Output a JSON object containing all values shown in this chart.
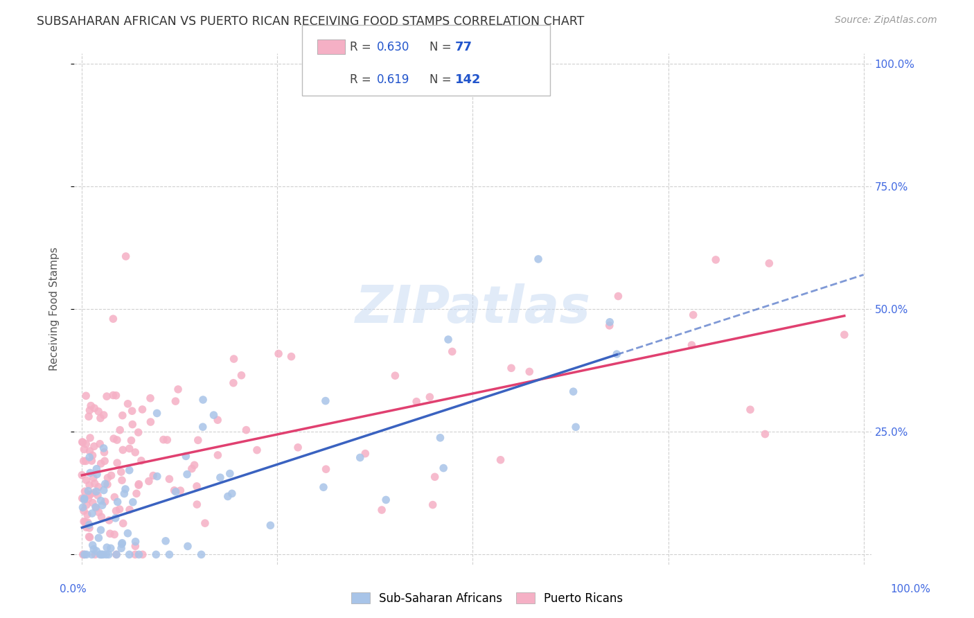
{
  "title": "SUBSAHARAN AFRICAN VS PUERTO RICAN RECEIVING FOOD STAMPS CORRELATION CHART",
  "source": "Source: ZipAtlas.com",
  "ylabel": "Receiving Food Stamps",
  "legend_blue_label": "Sub-Saharan Africans",
  "legend_pink_label": "Puerto Ricans",
  "blue_R": 0.63,
  "blue_N": 77,
  "pink_R": 0.619,
  "pink_N": 142,
  "blue_color": "#a8c4e8",
  "pink_color": "#f5b0c5",
  "blue_line_color": "#3a62c0",
  "pink_line_color": "#e04070",
  "watermark": "ZIPatlas",
  "background_color": "#ffffff",
  "blue_intercept": 5.0,
  "blue_slope": 0.48,
  "pink_intercept": 18.0,
  "pink_slope": 0.34
}
